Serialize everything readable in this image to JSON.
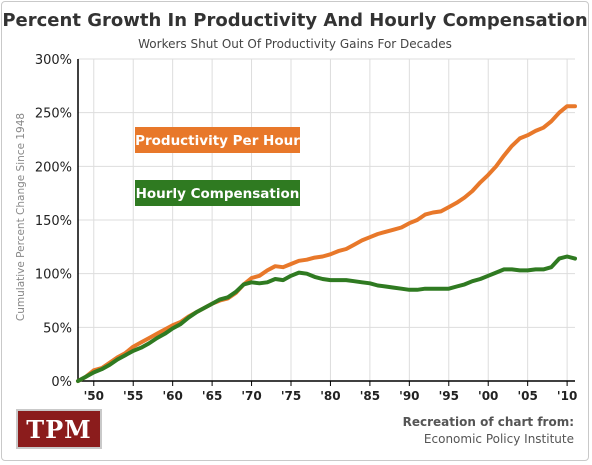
{
  "chart_data": {
    "type": "line",
    "title": "Percent Growth In Productivity And Hourly Compensation",
    "subtitle": "Workers Shut Out Of Productivity Gains For Decades",
    "ylabel": "Cumulative Percent Change Since 1948",
    "xlabel": "",
    "xlim": [
      1948,
      2011
    ],
    "ylim": [
      0,
      300
    ],
    "y_ticks": [
      0,
      50,
      100,
      150,
      200,
      250,
      300
    ],
    "y_tick_labels": [
      "0%",
      "50%",
      "100%",
      "150%",
      "200%",
      "250%",
      "300%"
    ],
    "x_ticks": [
      1950,
      1955,
      1960,
      1965,
      1970,
      1975,
      1980,
      1985,
      1990,
      1995,
      2000,
      2005,
      2010
    ],
    "x_tick_labels": [
      "'50",
      "'55",
      "'60",
      "'65",
      "'70",
      "'75",
      "'80",
      "'85",
      "'90",
      "'95",
      "'00",
      "'05",
      "'10"
    ],
    "grid": true,
    "legend": "inline labels, upper-left",
    "x": [
      1948,
      1949,
      1950,
      1951,
      1952,
      1953,
      1954,
      1955,
      1956,
      1957,
      1958,
      1959,
      1960,
      1961,
      1962,
      1963,
      1964,
      1965,
      1966,
      1967,
      1968,
      1969,
      1970,
      1971,
      1972,
      1973,
      1974,
      1975,
      1976,
      1977,
      1978,
      1979,
      1980,
      1981,
      1982,
      1983,
      1984,
      1985,
      1986,
      1987,
      1988,
      1989,
      1990,
      1991,
      1992,
      1993,
      1994,
      1995,
      1996,
      1997,
      1998,
      1999,
      2000,
      2001,
      2002,
      2003,
      2004,
      2005,
      2006,
      2007,
      2008,
      2009,
      2010,
      2011
    ],
    "series": [
      {
        "name": "Productivity Per Hour",
        "color": "#e8782a",
        "values": [
          0,
          4,
          10,
          12,
          17,
          22,
          26,
          32,
          36,
          40,
          44,
          48,
          52,
          55,
          60,
          64,
          68,
          72,
          75,
          77,
          82,
          90,
          96,
          98,
          103,
          107,
          106,
          109,
          112,
          113,
          115,
          116,
          118,
          121,
          123,
          127,
          131,
          134,
          137,
          139,
          141,
          143,
          147,
          150,
          155,
          157,
          158,
          162,
          166,
          171,
          177,
          185,
          192,
          200,
          210,
          219,
          226,
          229,
          233,
          236,
          242,
          250,
          256,
          256
        ]
      },
      {
        "name": "Hourly Compensation",
        "color": "#2f7a21",
        "values": [
          0,
          4,
          8,
          11,
          15,
          20,
          24,
          28,
          31,
          35,
          40,
          44,
          49,
          53,
          59,
          64,
          68,
          72,
          76,
          78,
          83,
          90,
          92,
          91,
          92,
          95,
          94,
          98,
          101,
          100,
          97,
          95,
          94,
          94,
          94,
          93,
          92,
          91,
          89,
          88,
          87,
          86,
          85,
          85,
          86,
          86,
          86,
          86,
          88,
          90,
          93,
          95,
          98,
          101,
          104,
          104,
          103,
          103,
          104,
          104,
          106,
          114,
          116,
          114
        ]
      }
    ]
  },
  "branding": {
    "logo_text": "TPM",
    "credit_line1": "Recreation of chart from:",
    "credit_line2": "Economic Policy Institute"
  }
}
